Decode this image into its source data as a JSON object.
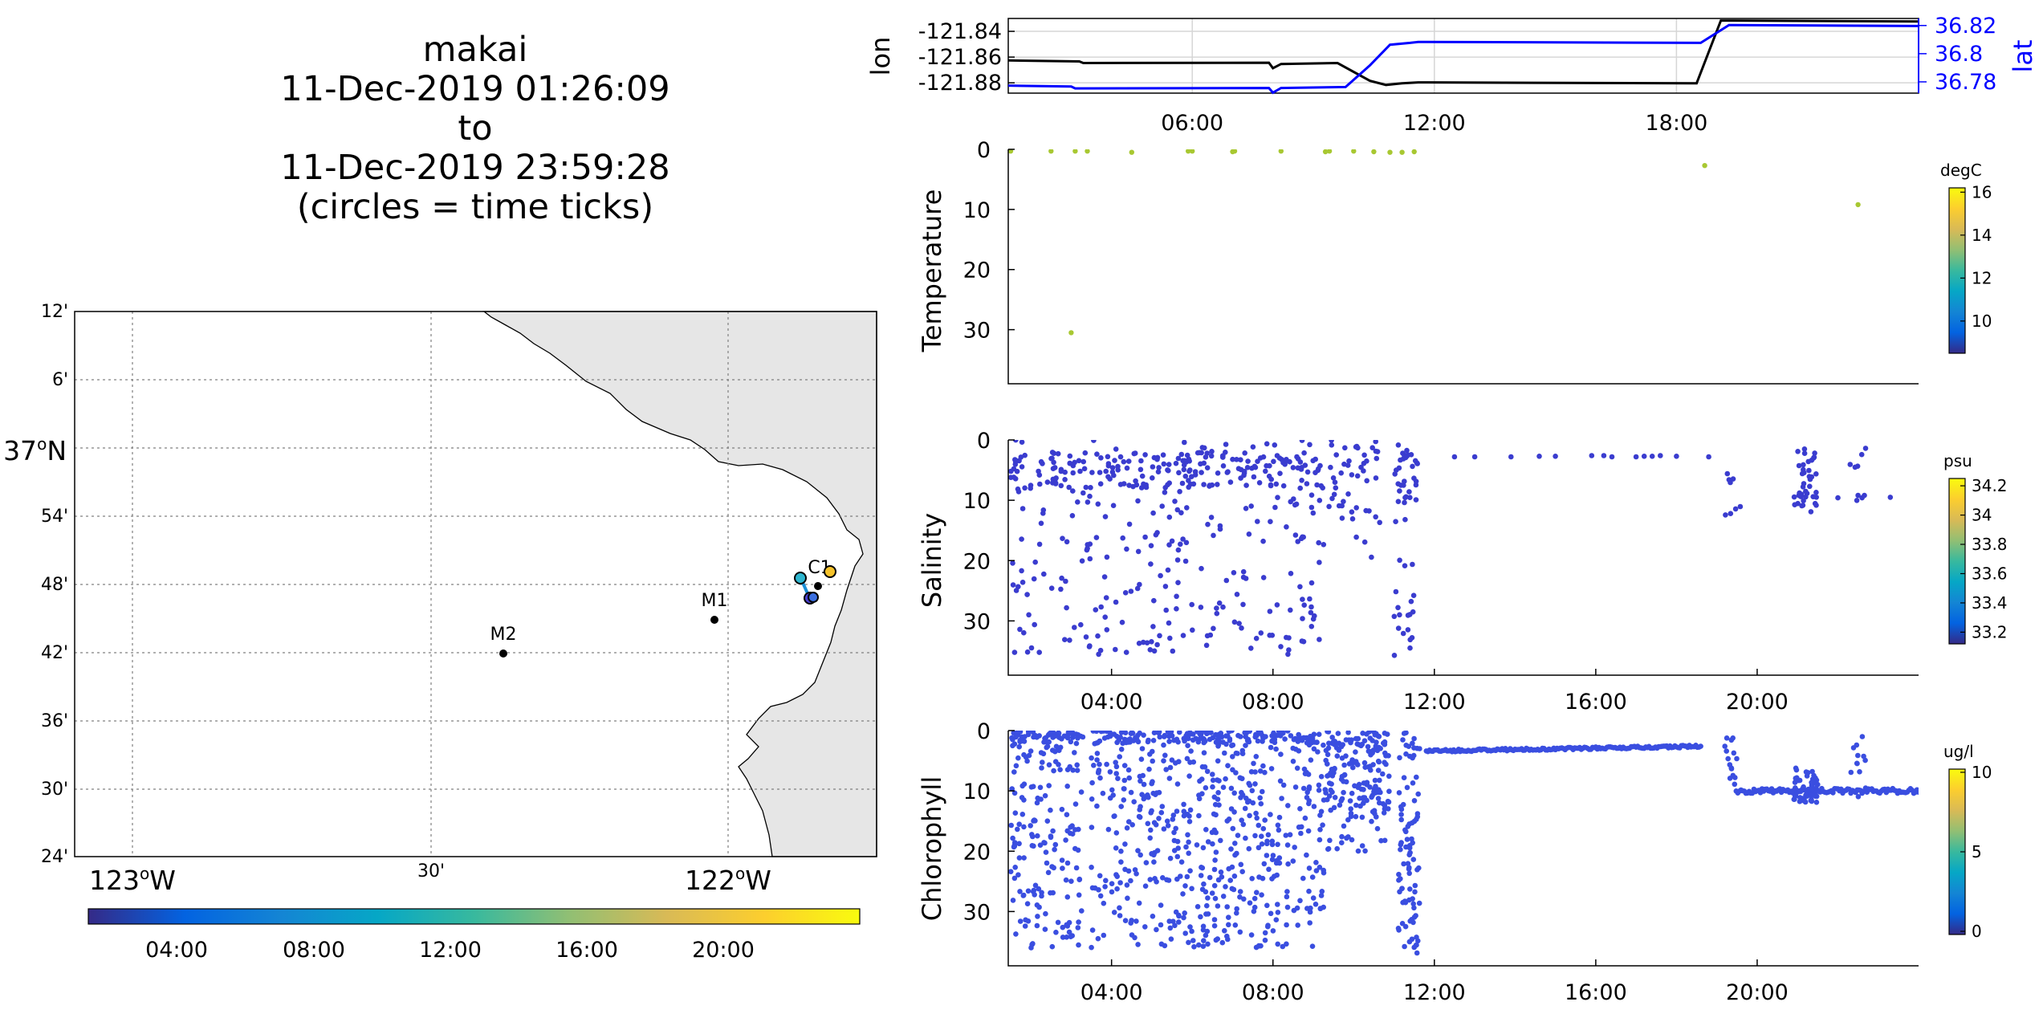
{
  "header": {
    "title_lines": [
      "makai",
      "11-Dec-2019 01:26:09",
      "to",
      "11-Dec-2019 23:59:28",
      "(circles = time ticks)"
    ]
  },
  "colors": {
    "lon_line": "#000000",
    "lat_line": "#0000ff",
    "temperature_points": "#a8c832",
    "salinity_points": "#3a3ccf",
    "chlorophyll_points": "#3a4ee0",
    "land": "#e6e6e6",
    "parula_stops": [
      "#352a87",
      "#0363e1",
      "#1485d4",
      "#06a7c6",
      "#38b99e",
      "#92bf73",
      "#d9ba56",
      "#fcce2e",
      "#f9fb0e"
    ]
  },
  "map": {
    "lat_labels": [
      "12'",
      "6'",
      "37oN",
      "54'",
      "48'",
      "42'",
      "36'",
      "30'",
      "24'"
    ],
    "lon_labels": [
      "123oW",
      "30'",
      "122oW"
    ],
    "moorings": [
      {
        "name": "M2",
        "lon": -122.39,
        "lat": 36.7
      },
      {
        "name": "M1",
        "lon": -122.03,
        "lat": 36.75
      },
      {
        "name": "C1",
        "lon": -121.85,
        "lat": 36.8
      }
    ],
    "time_colorbar_ticks": [
      "04:00",
      "08:00",
      "12:00",
      "16:00",
      "20:00"
    ]
  },
  "chart_data": [
    {
      "type": "line",
      "name": "position",
      "xlabel": "",
      "ylabel": "lon",
      "ylabel_right": "lat",
      "x_ticks": [
        "06:00",
        "12:00",
        "18:00"
      ],
      "xlim_hours": [
        1.44,
        24.0
      ],
      "y_left_ticks": [
        "-121.84",
        "-121.86",
        "-121.88"
      ],
      "ylim_left": [
        -121.888,
        -121.83
      ],
      "y_right_ticks": [
        "36.82",
        "36.8",
        "36.78"
      ],
      "ylim_right": [
        36.772,
        36.825
      ],
      "series": [
        {
          "axis": "left",
          "hours": [
            1.44,
            3.2,
            3.3,
            7.9,
            8.0,
            8.2,
            9.6,
            10.4,
            10.8,
            11.2,
            11.6,
            18.5,
            19.1,
            24.0
          ],
          "values": [
            -121.863,
            -121.863,
            -121.865,
            -121.864,
            -121.869,
            -121.865,
            -121.865,
            -121.878,
            -121.882,
            -121.88,
            -121.88,
            -121.88,
            -121.832,
            -121.832
          ]
        },
        {
          "axis": "right",
          "hours": [
            1.44,
            3.0,
            3.1,
            7.9,
            8.0,
            8.2,
            9.8,
            10.4,
            10.9,
            11.4,
            11.6,
            18.6,
            19.3,
            24.0
          ],
          "values": [
            36.777,
            36.777,
            36.775,
            36.776,
            36.772,
            36.776,
            36.776,
            36.792,
            36.806,
            36.808,
            36.808,
            36.808,
            36.82,
            36.82
          ]
        }
      ]
    },
    {
      "type": "scatter",
      "name": "temperature",
      "ylabel": "Temperature",
      "colorbar_unit": "degC",
      "colorbar_ticks": [
        "16",
        "14",
        "12",
        "10"
      ],
      "colorbar_range": [
        8.5,
        16.2
      ],
      "ylim": [
        0,
        39
      ],
      "y_ticks": [
        "0",
        "10",
        "20",
        "30"
      ],
      "xlim_hours": [
        1.44,
        24.0
      ],
      "points": [
        [
          1.5,
          0.3
        ],
        [
          2.5,
          0.3
        ],
        [
          3.1,
          0.3
        ],
        [
          3.4,
          0.3
        ],
        [
          4.5,
          0.5
        ],
        [
          5.9,
          0.3
        ],
        [
          6.0,
          0.3
        ],
        [
          7.0,
          0.4
        ],
        [
          7.05,
          0.3
        ],
        [
          8.2,
          0.3
        ],
        [
          9.3,
          0.4
        ],
        [
          9.4,
          0.3
        ],
        [
          10.0,
          0.3
        ],
        [
          10.5,
          0.4
        ],
        [
          10.9,
          0.5
        ],
        [
          11.2,
          0.5
        ],
        [
          11.5,
          0.4
        ],
        [
          3.0,
          30.5
        ],
        [
          18.7,
          2.7
        ],
        [
          22.5,
          9.2
        ]
      ]
    },
    {
      "type": "scatter",
      "name": "salinity",
      "ylabel": "Salinity",
      "colorbar_unit": "psu",
      "colorbar_ticks": [
        "34.2",
        "34",
        "33.8",
        "33.6",
        "33.4",
        "33.2"
      ],
      "colorbar_range": [
        33.12,
        34.25
      ],
      "x_ticks": [
        "04:00",
        "08:00",
        "12:00",
        "16:00",
        "20:00"
      ],
      "ylim": [
        0,
        39
      ],
      "y_ticks": [
        "0",
        "10",
        "20",
        "30"
      ],
      "xlim_hours": [
        1.44,
        24.0
      ]
    },
    {
      "type": "scatter",
      "name": "chlorophyll",
      "ylabel": "Chlorophyll",
      "colorbar_unit": "ug/l",
      "colorbar_ticks": [
        "10",
        "5",
        "0"
      ],
      "colorbar_range": [
        -0.2,
        10.2
      ],
      "x_ticks": [
        "04:00",
        "08:00",
        "12:00",
        "16:00",
        "20:00"
      ],
      "ylim": [
        0,
        39
      ],
      "y_ticks": [
        "0",
        "10",
        "20",
        "30"
      ],
      "xlim_hours": [
        1.44,
        24.0
      ]
    }
  ]
}
